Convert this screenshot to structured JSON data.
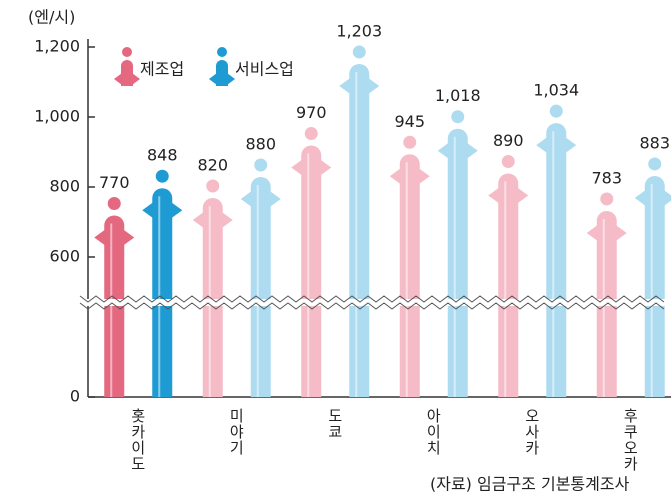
{
  "chart_data": {
    "type": "bar",
    "y_label": "(엔/시)",
    "source": "(자료) 임금구조 기본통계조사",
    "categories": [
      "홋카이도",
      "미야기",
      "도쿄",
      "아이치",
      "오사카",
      "후쿠오카"
    ],
    "series": [
      {
        "name": "제조업",
        "color": "#f5bcc8",
        "highlight_color": "#e4687f",
        "values": [
          770,
          820,
          970,
          945,
          890,
          783
        ]
      },
      {
        "name": "서비스업",
        "color": "#addbf0",
        "highlight_color": "#1e9bd3",
        "values": [
          848,
          880,
          1203,
          1018,
          1034,
          883
        ],
        "value_labels": [
          "848",
          "880",
          "1,203",
          "1,018",
          "1,034",
          "883"
        ]
      }
    ],
    "highlight_category": 0,
    "ylim": [
      0,
      1200
    ],
    "ybreak": [
      260,
      480
    ],
    "yticks": [
      0,
      600,
      800,
      {
        "value": 1000,
        "label": "1,000"
      },
      {
        "value": 1200,
        "label": "1,200"
      }
    ]
  }
}
